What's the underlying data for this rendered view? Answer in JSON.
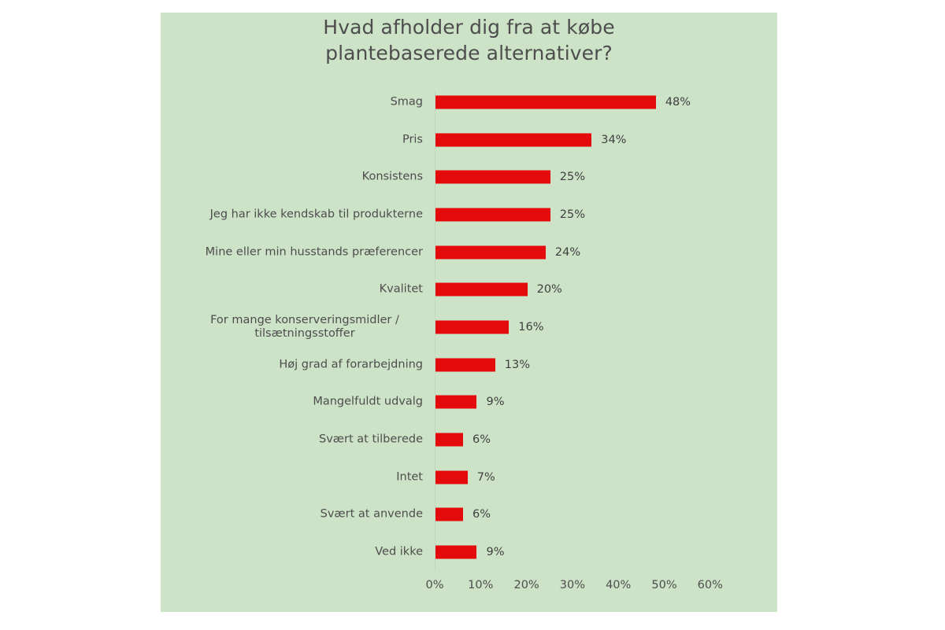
{
  "chart_data": {
    "type": "bar",
    "orientation": "horizontal",
    "title": "Hvad afholder dig fra at købe plantebaserede alternativer?",
    "title_lines": [
      "Hvad afholder dig fra at købe",
      "plantebaserede alternativer?"
    ],
    "xlabel": "",
    "ylabel": "",
    "categories": [
      "Smag",
      "Pris",
      "Konsistens",
      "Jeg har ikke kendskab til produkterne",
      "Mine eller min husstands præferencer",
      "Kvalitet",
      "For mange konserveringsmidler / tilsætningsstoffer",
      "Høj grad af forarbejdning",
      "Mangelfuldt udvalg",
      "Svært at tilberede",
      "Intet",
      "Svært at anvende",
      "Ved ikke"
    ],
    "values": [
      48,
      34,
      25,
      25,
      24,
      20,
      16,
      13,
      9,
      6,
      7,
      6,
      9
    ],
    "value_labels": [
      "48%",
      "34%",
      "25%",
      "25%",
      "24%",
      "20%",
      "16%",
      "13%",
      "9%",
      "6%",
      "7%",
      "6%",
      "9%"
    ],
    "xlim": [
      0,
      60
    ],
    "x_ticks": [
      "0%",
      "10%",
      "20%",
      "30%",
      "40%",
      "50%",
      "60%"
    ],
    "grid": false,
    "legend": null,
    "colors": {
      "bar": "#e30b0b",
      "background": "#cde3c7",
      "text": "#4d4d4d"
    }
  },
  "rows": [
    {
      "label": "Smag",
      "value": 48,
      "display": "48%"
    },
    {
      "label": "Pris",
      "value": 34,
      "display": "34%"
    },
    {
      "label": "Konsistens",
      "value": 25,
      "display": "25%"
    },
    {
      "label": "Jeg har ikke kendskab til produkterne",
      "value": 25,
      "display": "25%"
    },
    {
      "label": "Mine eller min husstands præferencer",
      "value": 24,
      "display": "24%"
    },
    {
      "label": "Kvalitet",
      "value": 20,
      "display": "20%"
    },
    {
      "label": "For mange konserveringsmidler / tilsætningsstoffer",
      "label_lines": [
        "For mange konserveringsmidler /",
        "tilsætningsstoffer"
      ],
      "value": 16,
      "display": "16%"
    },
    {
      "label": "Høj grad af forarbejdning",
      "value": 13,
      "display": "13%"
    },
    {
      "label": "Mangelfuldt udvalg",
      "value": 9,
      "display": "9%"
    },
    {
      "label": "Svært at tilberede",
      "value": 6,
      "display": "6%"
    },
    {
      "label": "Intet",
      "value": 7,
      "display": "7%"
    },
    {
      "label": "Svært at anvende",
      "value": 6,
      "display": "6%"
    },
    {
      "label": "Ved ikke",
      "value": 9,
      "display": "9%"
    }
  ],
  "axis": {
    "ticks": [
      {
        "value": 0,
        "label": "0%"
      },
      {
        "value": 10,
        "label": "10%"
      },
      {
        "value": 20,
        "label": "20%"
      },
      {
        "value": 30,
        "label": "30%"
      },
      {
        "value": 40,
        "label": "40%"
      },
      {
        "value": 50,
        "label": "50%"
      },
      {
        "value": 60,
        "label": "60%"
      }
    ]
  }
}
